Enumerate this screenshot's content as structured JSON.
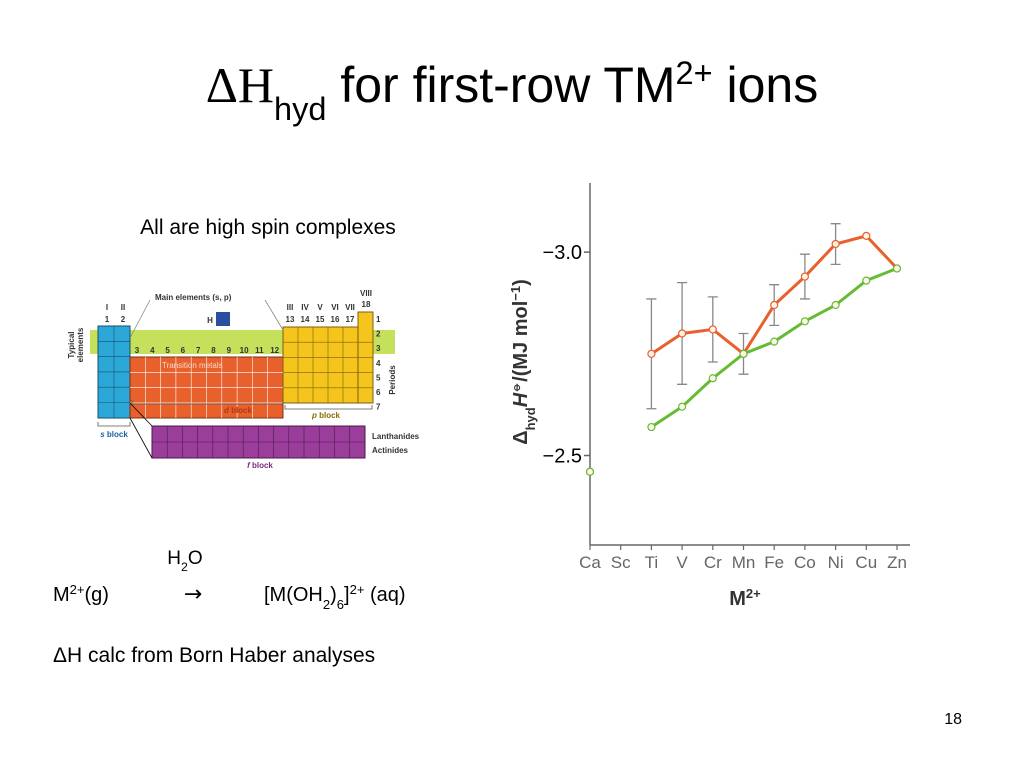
{
  "title_parts": [
    "ΔH",
    "hyd",
    " for first-row TM",
    "2+",
    " ions"
  ],
  "subtitle": "All are high spin complexes",
  "reaction": {
    "solvent": [
      "H",
      "2",
      "O"
    ],
    "left": [
      "M",
      "2+",
      "(g)"
    ],
    "arrow": "→",
    "right": [
      "[M(OH",
      "2",
      ")",
      "6",
      "]",
      "2+",
      " (aq)"
    ]
  },
  "note": "ΔH calc from Born Haber analyses",
  "page_number": "18",
  "periodic_table": {
    "main_label": "Main elements (s, p)",
    "group_roman_left": [
      "I",
      "II"
    ],
    "group_num_left": [
      "1",
      "2"
    ],
    "group_roman_right": [
      "III",
      "IV",
      "V",
      "VI",
      "VII"
    ],
    "group_roman_18": "VIII",
    "group_num_right": [
      "13",
      "14",
      "15",
      "16",
      "17"
    ],
    "group_num_18": "18",
    "h_label": "H",
    "d_groups": [
      "3",
      "4",
      "5",
      "6",
      "7",
      "8",
      "9",
      "10",
      "11",
      "12"
    ],
    "transition_label": "Transition metals",
    "typical_label": [
      "Typical",
      "elements"
    ],
    "periods_label": "Periods",
    "periods": [
      "1",
      "2",
      "3",
      "4",
      "5",
      "6",
      "7"
    ],
    "s_block": [
      "s",
      " block"
    ],
    "d_block": [
      "d",
      " block"
    ],
    "p_block": [
      "p",
      " block"
    ],
    "f_block": [
      "f",
      " block"
    ],
    "lanthanides": "Lanthanides",
    "actinides": "Actinides"
  },
  "chart_data": {
    "type": "line",
    "y_label_parts": [
      "Δ",
      "hyd",
      "H",
      "⦵",
      "/(MJ mol",
      "−1",
      ")"
    ],
    "x_label_parts": [
      "M",
      "2+"
    ],
    "categories": [
      "Ca",
      "Sc",
      "Ti",
      "V",
      "Cr",
      "Mn",
      "Fe",
      "Co",
      "Ni",
      "Cu",
      "Zn"
    ],
    "ylim": [
      -2.28,
      -3.17
    ],
    "yticks": [
      {
        "value": -3.0,
        "label": "−3.0"
      },
      {
        "value": -2.5,
        "label": "−2.5"
      }
    ],
    "series": [
      {
        "color": "#e8602c",
        "values": [
          -2.46,
          null,
          -2.75,
          -2.8,
          -2.81,
          -2.75,
          -2.87,
          -2.94,
          -3.02,
          -3.04,
          -2.96
        ],
        "errors": [
          null,
          null,
          0.135,
          0.125,
          0.08,
          0.05,
          0.05,
          0.055,
          0.05,
          null,
          null
        ]
      },
      {
        "color": "#66bb33",
        "values": [
          -2.46,
          null,
          -2.57,
          -2.62,
          -2.69,
          -2.75,
          -2.78,
          -2.83,
          -2.87,
          -2.93,
          -2.96
        ]
      }
    ]
  }
}
